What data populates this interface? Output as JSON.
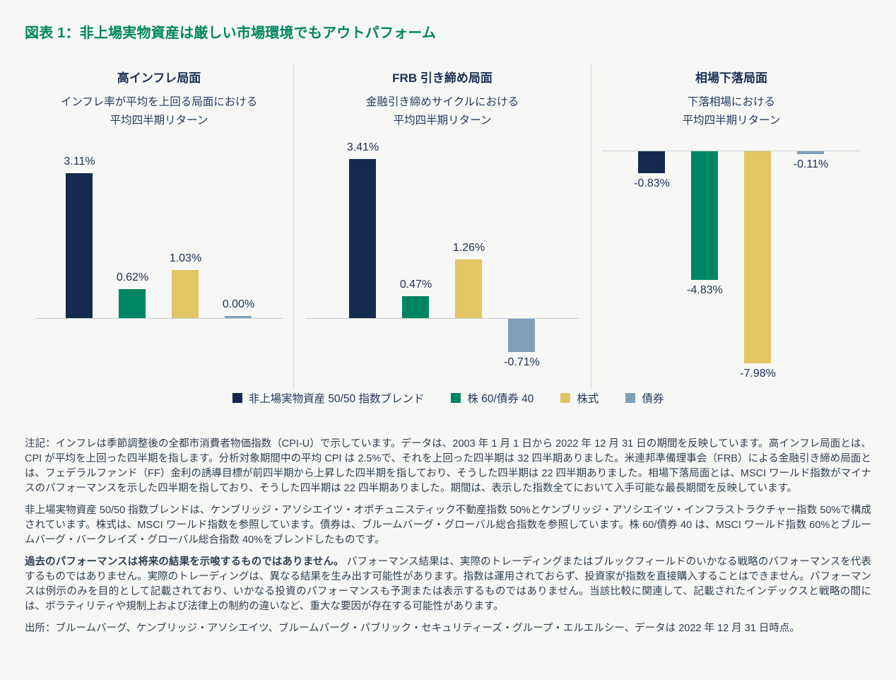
{
  "page": {
    "title": "図表 1：非上場実物資産は厳しい市場環境でもアウトパフォーム"
  },
  "chart_data": {
    "type": "bar",
    "unit": "%",
    "grid": false,
    "legend_position": "bottom-center",
    "series_labels": [
      "非上場実物資産 50/50 指数ブレンド",
      "株 60/債券 40",
      "株式",
      "債券"
    ],
    "series_colors": [
      "#152a4e",
      "#008563",
      "#e2c564",
      "#7fa0bb"
    ],
    "panels": [
      {
        "title": "高インフレ局面",
        "subtitle_line1": "インフレ率が平均を上回る局面における",
        "subtitle_line2": "平均四半期リターン",
        "values": [
          3.11,
          0.62,
          1.03,
          0.0
        ],
        "labels": [
          "3.11%",
          "0.62%",
          "1.03%",
          "0.00%"
        ]
      },
      {
        "title": "FRB 引き締め局面",
        "subtitle_line1": "金融引き締めサイクルにおける",
        "subtitle_line2": "平均四半期リターン",
        "values": [
          3.41,
          0.47,
          1.26,
          -0.71
        ],
        "labels": [
          "3.41%",
          "0.47%",
          "1.26%",
          "-0.71%"
        ]
      },
      {
        "title": "相場下落局面",
        "subtitle_line1": "下落相場における",
        "subtitle_line2": "平均四半期リターン",
        "values": [
          -0.83,
          -4.83,
          -7.98,
          -0.11
        ],
        "labels": [
          "-0.83%",
          "-4.83%",
          "-7.98%",
          "-0.11%"
        ]
      }
    ]
  },
  "notes": {
    "p1": "注記：インフレは季節調整後の全都市消費者物価指数（CPI-U）で示しています。データは、2003 年 1 月 1 日から 2022 年 12 月 31 日の期間を反映しています。高インフレ局面とは、CPI が平均を上回った四半期を指します。分析対象期間中の平均 CPI は 2.5%で、それを上回った四半期は 32 四半期ありました。米連邦準備理事会（FRB）による金融引き締め局面とは、フェデラルファンド（FF）金利の誘導目標が前四半期から上昇した四半期を指しており、そうした四半期は 22 四半期ありました。相場下落局面とは、MSCI ワールド指数がマイナスのパフォーマンスを示した四半期を指しており、そうした四半期は 22 四半期ありました。期間は、表示した指数全てにおいて入手可能な最長期間を反映しています。",
    "p2": "非上場実物資産 50/50 指数ブレンドは、ケンブリッジ・アソシエイツ・オポチュニスティック不動産指数 50%とケンブリッジ・アソシエイツ・インフラストラクチャー指数 50%で構成されています。株式は、MSCI ワールド指数を参照しています。債券は、ブルームバーグ・グローバル総合指数を参照しています。株 60/債券 40 は、MSCI ワールド指数 60%とブルームバーグ・バークレイズ・グローバル総合指数 40%をブレンドしたものです。",
    "p3_lead": "過去のパフォーマンスは将来の結果を示唆するものではありません。",
    "p3_rest": " パフォーマンス結果は、実際のトレーディングまたはブルックフィールドのいかなる戦略のパフォーマンスを代表するものではありません。実際のトレーディングは、異なる結果を生み出す可能性があります。指数は運用されておらず、投資家が指数を直接購入することはできません。パフォーマンスは例示のみを目的として記載されており、いかなる投資のパフォーマンスも予測または表示するものではありません。当該比較に関連して、記載されたインデックスと戦略の間には、ボラティリティや規制上および法律上の制約の違いなど、重大な要因が存在する可能性があります。",
    "source": "出所：ブルームバーグ、ケンブリッジ・アソシエイツ、ブルームバーグ・パブリック・セキュリティーズ・グループ・エルエルシー、データは 2022 年 12 月 31 日時点。"
  }
}
